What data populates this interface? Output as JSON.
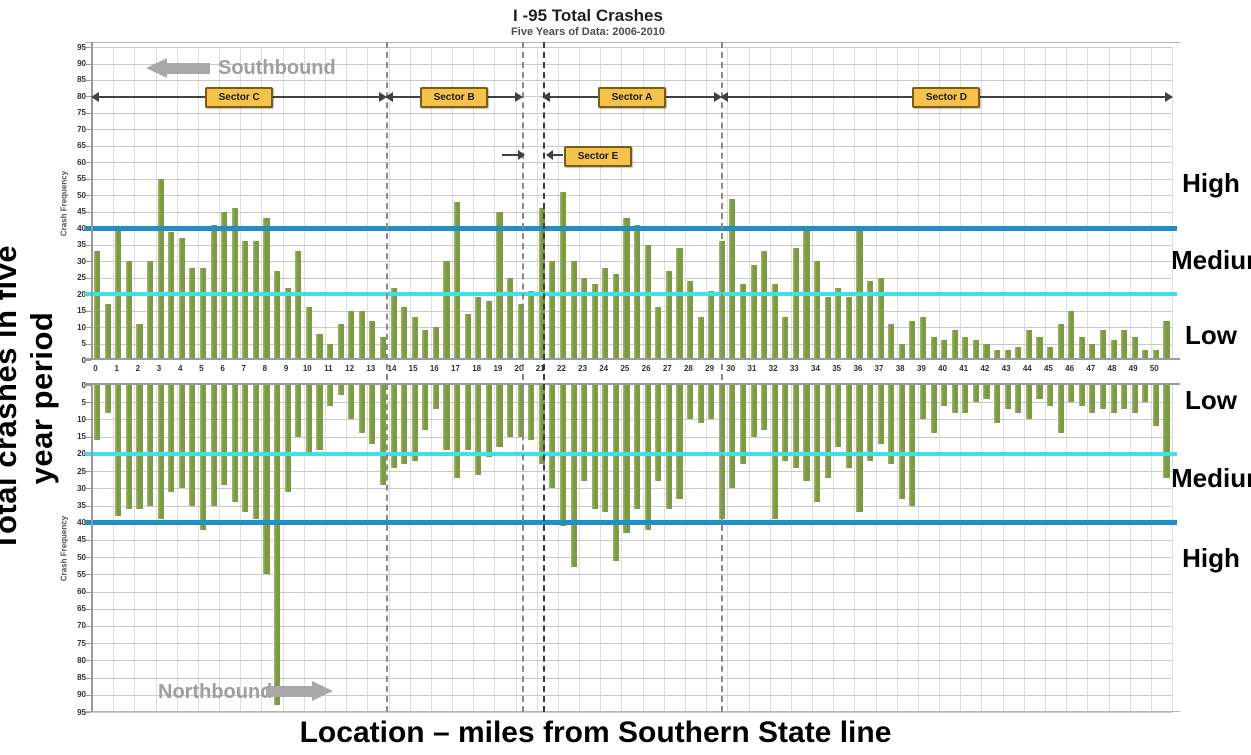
{
  "title": "I -95 Total Crashes",
  "subtitle": "Five Years of Data: 2006-2010",
  "left_axis_title": "Total crashes in five year period",
  "bottom_axis_title": "Location – miles from Southern State line",
  "direction_labels": {
    "top_panel": "Southbound",
    "bottom_panel": "Northbound"
  },
  "zone_labels": {
    "top_panel": [
      "High",
      "Medium",
      "Low"
    ],
    "bottom_panel": [
      "Low",
      "Medium",
      "High"
    ]
  },
  "colors": {
    "bar": "#7d9a44",
    "threshold_low_medium": "#3be3e8",
    "threshold_medium_high": "#1f90c4",
    "sector_box_fill": "#f5c34c",
    "sector_box_border": "#7a5c16",
    "direction_gray": "#9e9e9e"
  },
  "chart_data": {
    "type": "bar",
    "title": "I -95 Total Crashes",
    "subtitle": "Five Years of Data: 2006-2010",
    "x_start": 0,
    "x_step": 0.5,
    "x_axis": {
      "label": "Location – miles from Southern State line",
      "ticks": [
        0,
        1,
        2,
        3,
        4,
        5,
        6,
        7,
        8,
        9,
        10,
        11,
        12,
        13,
        14,
        15,
        16,
        17,
        18,
        19,
        20,
        21,
        22,
        23,
        24,
        25,
        26,
        27,
        28,
        29,
        30,
        31,
        32,
        33,
        34,
        35,
        36,
        37,
        38,
        39,
        40,
        41,
        42,
        43,
        44,
        45,
        46,
        47,
        48,
        49,
        50
      ]
    },
    "y_axis": {
      "label": "Crash Frequency",
      "min": 0,
      "max": 95,
      "ticks": [
        0,
        5,
        10,
        15,
        20,
        25,
        30,
        35,
        40,
        45,
        50,
        55,
        60,
        65,
        70,
        75,
        80,
        85,
        90,
        95
      ]
    },
    "grid": true,
    "legend": "none",
    "series": [
      {
        "name": "Southbound",
        "panel": "top",
        "values": [
          33,
          17,
          40,
          30,
          11,
          30,
          55,
          39,
          37,
          28,
          28,
          41,
          45,
          46,
          36,
          36,
          43,
          27,
          22,
          33,
          16,
          8,
          5,
          11,
          15,
          15,
          12,
          7,
          22,
          16,
          13,
          9,
          10,
          30,
          48,
          14,
          19,
          18,
          45,
          25,
          17,
          21,
          46,
          30,
          51,
          30,
          25,
          23,
          28,
          26,
          43,
          41,
          35,
          16,
          27,
          34,
          24,
          13,
          21,
          36,
          49,
          23,
          29,
          33,
          23,
          13,
          34,
          40,
          30,
          19,
          22,
          19,
          40,
          24,
          25,
          11,
          5,
          12,
          13,
          7,
          6,
          9,
          7,
          6,
          5,
          3,
          3,
          4,
          9,
          7,
          4,
          11,
          15,
          7,
          5,
          9,
          6,
          9,
          7,
          3,
          3,
          12
        ]
      },
      {
        "name": "Northbound",
        "panel": "bottom",
        "values": [
          16,
          8,
          38,
          36,
          36,
          35,
          39,
          31,
          30,
          35,
          42,
          35,
          29,
          34,
          37,
          39,
          55,
          93,
          31,
          15,
          20,
          19,
          6,
          3,
          10,
          14,
          17,
          29,
          24,
          23,
          22,
          13,
          7,
          19,
          27,
          19,
          26,
          21,
          18,
          15,
          15,
          16,
          23,
          30,
          41,
          53,
          28,
          36,
          37,
          51,
          43,
          36,
          42,
          28,
          36,
          33,
          10,
          11,
          10,
          39,
          30,
          23,
          15,
          13,
          39,
          22,
          24,
          28,
          34,
          27,
          18,
          24,
          37,
          22,
          17,
          23,
          33,
          35,
          10,
          14,
          6,
          8,
          8,
          5,
          4,
          11,
          7,
          8,
          10,
          4,
          6,
          14,
          5,
          6,
          8,
          7,
          8,
          7,
          8,
          5,
          12,
          27
        ]
      }
    ],
    "threshold_lines": [
      {
        "value": 20,
        "meaning": "Low / Medium boundary",
        "color": "#3be3e8"
      },
      {
        "value": 40,
        "meaning": "Medium / High boundary",
        "color": "#1f90c4"
      }
    ],
    "sector_boundaries_miles": [
      {
        "mile": 13.9,
        "style": "gray"
      },
      {
        "mile": 20.3,
        "style": "gray"
      },
      {
        "mile": 21.3,
        "style": "dark"
      },
      {
        "mile": 29.7,
        "style": "gray"
      }
    ],
    "sectors": [
      {
        "name": "Sector C",
        "from_mile": 0,
        "to_mile": 13.9
      },
      {
        "name": "Sector B",
        "from_mile": 13.9,
        "to_mile": 20.3
      },
      {
        "name": "Sector A",
        "from_mile": 21.3,
        "to_mile": 29.7
      },
      {
        "name": "Sector D",
        "from_mile": 29.7,
        "to_mile": 51
      },
      {
        "name": "Sector E",
        "from_mile": 20.3,
        "to_mile": 21.3,
        "detached_label": true
      }
    ]
  }
}
